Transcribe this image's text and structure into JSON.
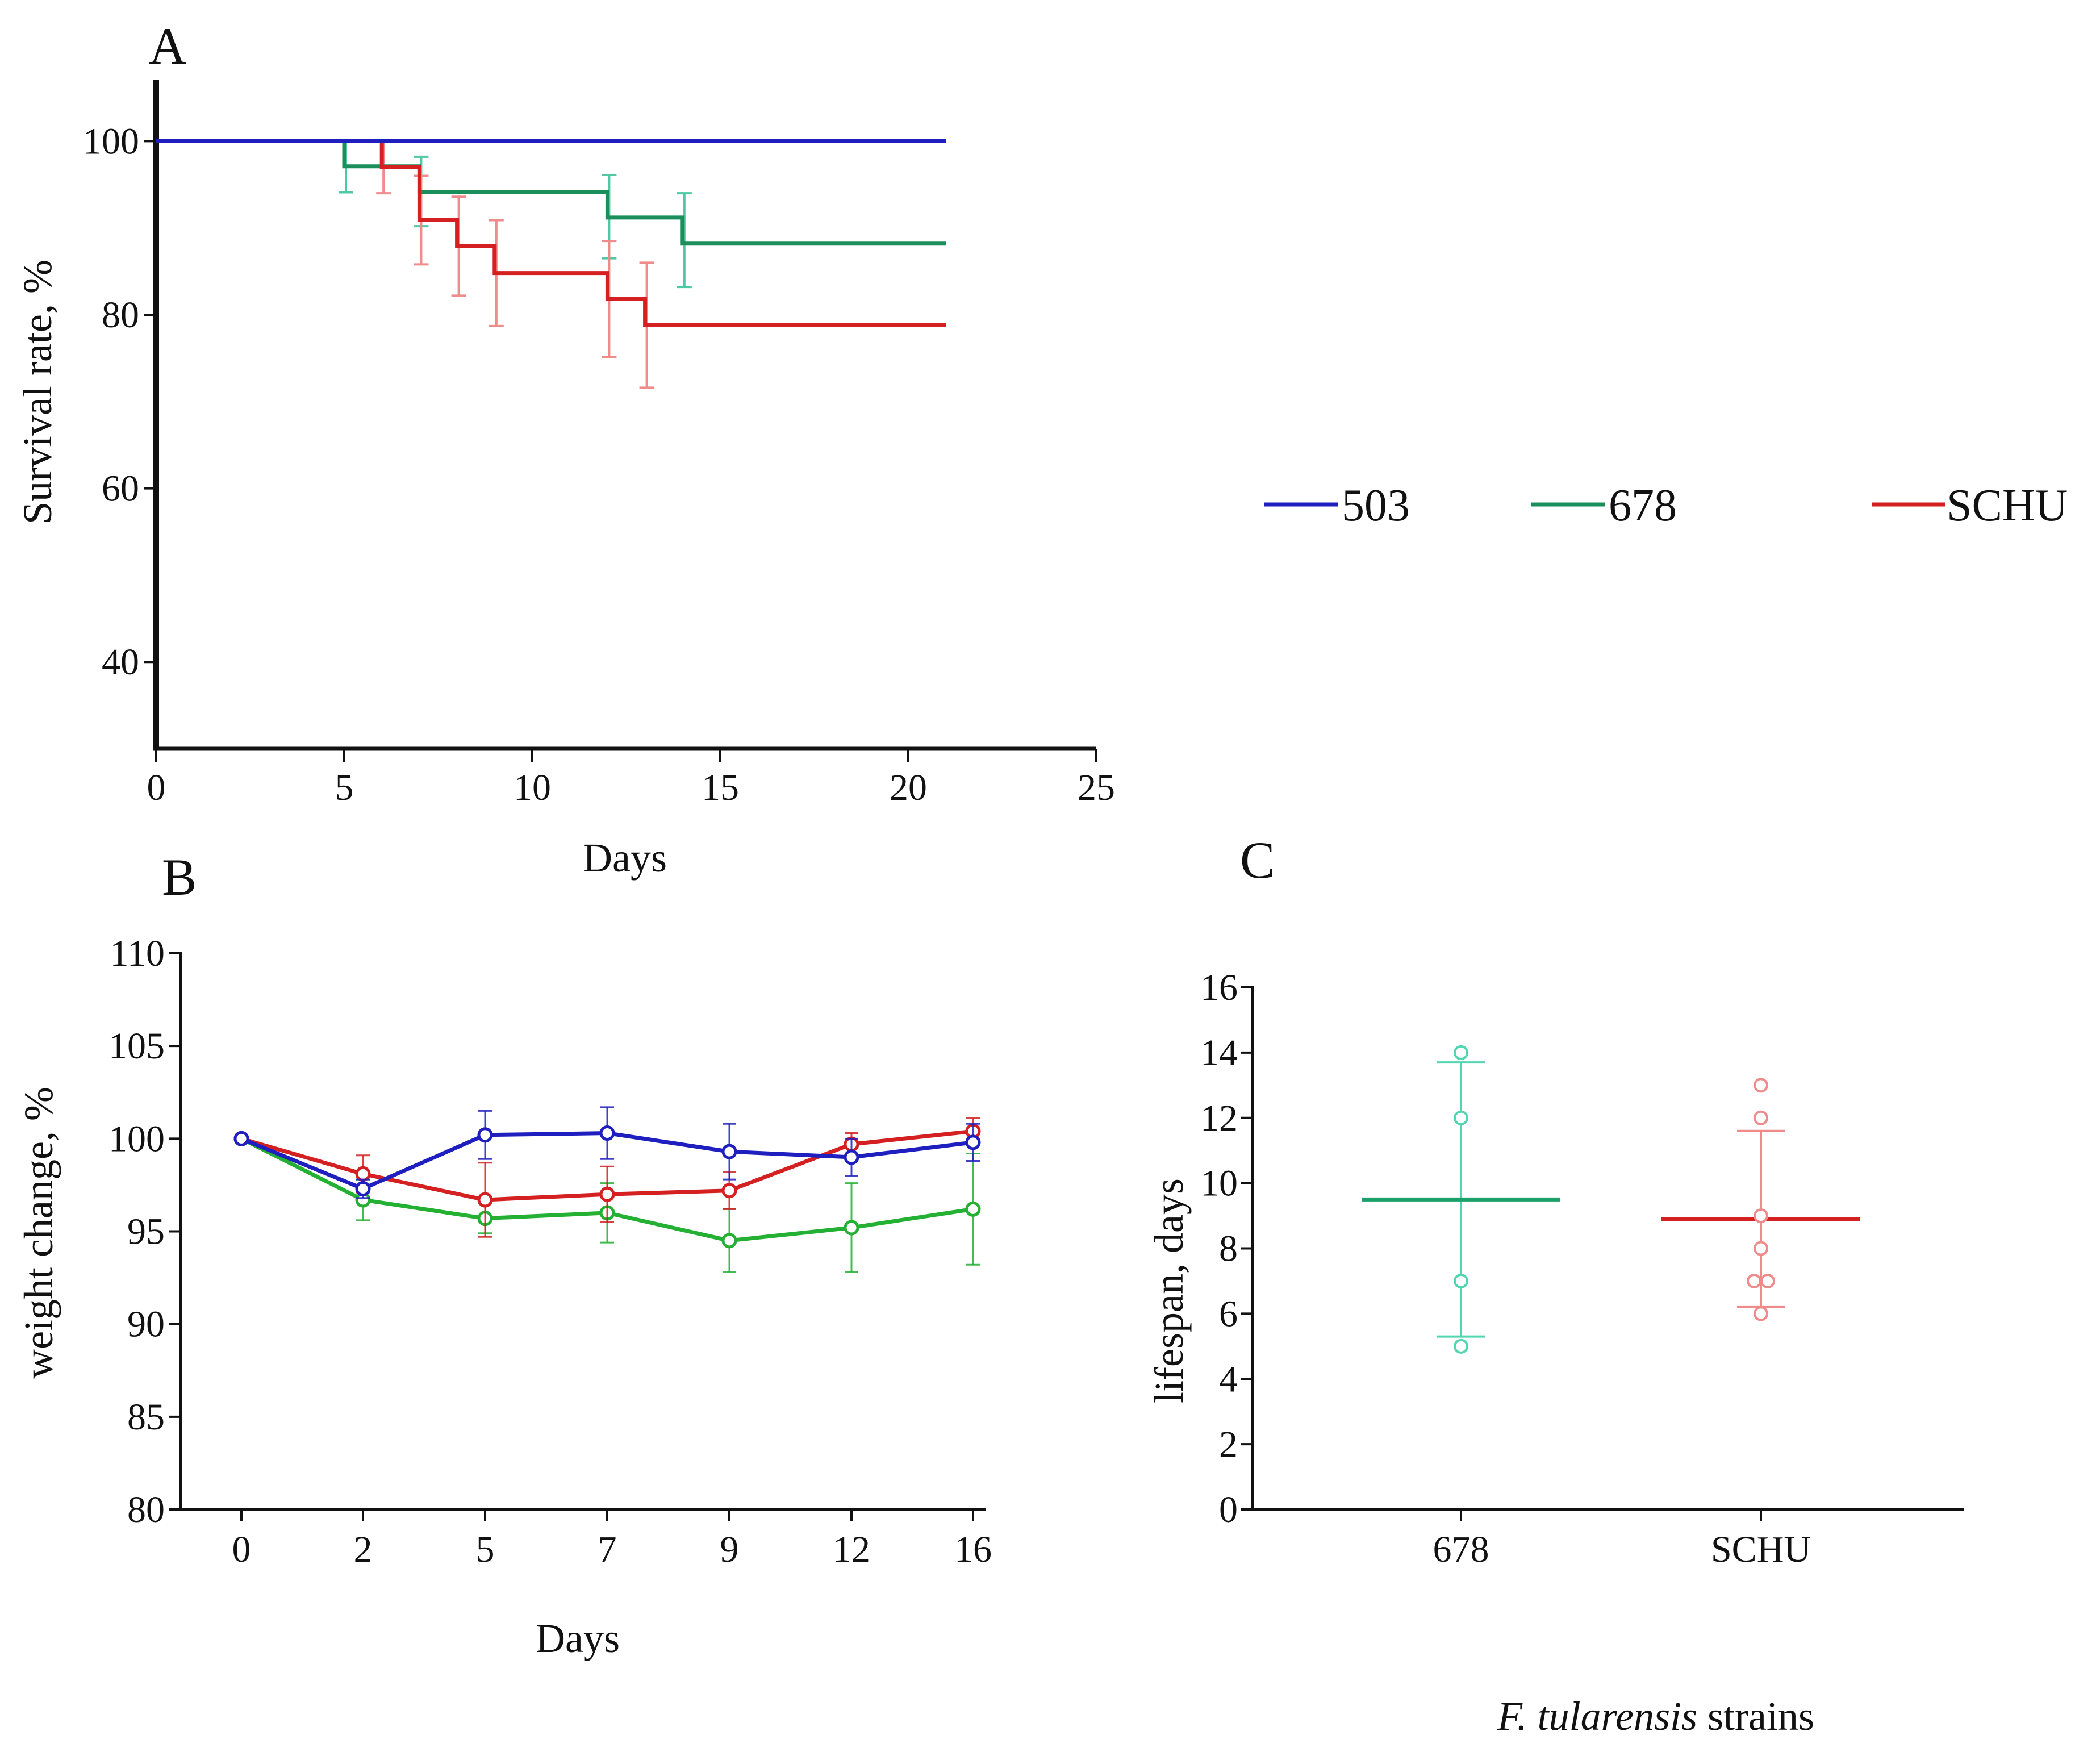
{
  "panels": {
    "a": {
      "letter": "A"
    },
    "b": {
      "letter": "B"
    },
    "c": {
      "letter": "C"
    }
  },
  "legend": [
    {
      "label": "503",
      "color": "#1f1fbf"
    },
    {
      "label": "678",
      "color": "#1a8f5c"
    },
    {
      "label": "SCHU",
      "color": "#d42020"
    }
  ],
  "colors": {
    "axis": "#111111",
    "blue": "#1f1fbf",
    "green_a": "#1a8f5c",
    "green_err_a": "#4fc9a4",
    "red": "#d42020",
    "red_err": "#ef8b8b",
    "green_b": "#23b033",
    "green_c": "#1aa06a",
    "green_err_c": "#52d6b0"
  },
  "chart_data": [
    {
      "id": "A",
      "type": "line",
      "subtype": "kaplan-meier step",
      "xlabel": "Days",
      "ylabel": "Survival rate, %",
      "xlim": [
        0,
        25
      ],
      "ylim": [
        30,
        105
      ],
      "xticks": [
        0,
        5,
        10,
        15,
        20,
        25
      ],
      "yticks": [
        40,
        60,
        80,
        100
      ],
      "series": [
        {
          "name": "503",
          "steps": [
            [
              0,
              100
            ],
            [
              21,
              100
            ]
          ],
          "errors": []
        },
        {
          "name": "678",
          "steps": [
            [
              0,
              100
            ],
            [
              5,
              97.1
            ],
            [
              7,
              94.1
            ],
            [
              12,
              91.2
            ],
            [
              14,
              88.2
            ],
            [
              21,
              88.2
            ]
          ],
          "errors": [
            [
              5,
              94.1,
              100
            ],
            [
              7,
              90.2,
              98.2
            ],
            [
              12,
              86.5,
              96.1
            ],
            [
              14,
              83.2,
              94.0
            ]
          ]
        },
        {
          "name": "SCHU",
          "steps": [
            [
              0,
              100
            ],
            [
              6,
              97.0
            ],
            [
              7,
              90.9
            ],
            [
              8,
              87.9
            ],
            [
              9,
              84.8
            ],
            [
              12,
              81.8
            ],
            [
              13,
              78.8
            ],
            [
              21,
              78.8
            ]
          ],
          "errors": [
            [
              6,
              94.0,
              100
            ],
            [
              7,
              85.8,
              96.0
            ],
            [
              8,
              82.2,
              93.6
            ],
            [
              9,
              78.7,
              90.9
            ],
            [
              12,
              75.1,
              88.5
            ],
            [
              13,
              71.6,
              86.0
            ]
          ]
        }
      ]
    },
    {
      "id": "B",
      "type": "line",
      "xlabel": "Days",
      "ylabel": "weight change, %",
      "categories": [
        "0",
        "2",
        "5",
        "7",
        "9",
        "12",
        "16"
      ],
      "ylim": [
        80,
        110
      ],
      "yticks": [
        80,
        85,
        90,
        95,
        100,
        105,
        110
      ],
      "series": [
        {
          "name": "503",
          "values": [
            100,
            97.3,
            100.2,
            100.3,
            99.3,
            99.0,
            99.8
          ],
          "err": [
            0,
            0.5,
            1.3,
            1.4,
            1.5,
            1.0,
            1.0
          ]
        },
        {
          "name": "SCHU",
          "values": [
            100,
            98.1,
            96.7,
            97.0,
            97.2,
            99.7,
            100.4
          ],
          "err": [
            0,
            1.0,
            2.0,
            1.5,
            1.0,
            0.6,
            0.7
          ]
        },
        {
          "name": "678",
          "values": [
            100,
            96.7,
            95.7,
            96.0,
            94.5,
            95.2,
            96.2
          ],
          "err": [
            0,
            1.1,
            0.8,
            1.6,
            1.7,
            2.4,
            3.0
          ]
        }
      ]
    },
    {
      "id": "C",
      "type": "scatter",
      "subtype": "dot plot with mean and SD",
      "xlabel_italic": "F. tularensis",
      "xlabel_rest": " strains",
      "ylabel": "lifespan, days",
      "categories": [
        "678",
        "SCHU"
      ],
      "ylim": [
        0,
        16
      ],
      "yticks": [
        0,
        2,
        4,
        6,
        8,
        10,
        12,
        14,
        16
      ],
      "groups": [
        {
          "name": "678",
          "points": [
            14,
            12,
            7,
            5
          ],
          "mean": 9.5,
          "sd_low": 5.3,
          "sd_high": 13.7
        },
        {
          "name": "SCHU",
          "points": [
            13,
            12,
            9,
            8,
            7,
            7,
            6
          ],
          "mean": 8.9,
          "sd_low": 6.2,
          "sd_high": 11.6
        }
      ]
    }
  ]
}
